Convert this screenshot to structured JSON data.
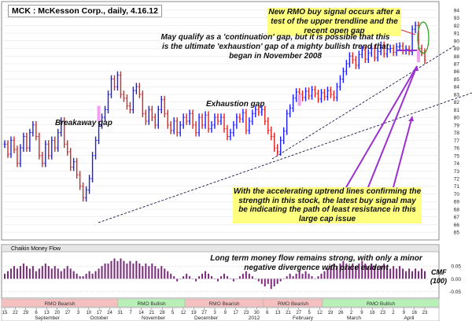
{
  "chart_data": [
    {
      "type": "candlestick",
      "title": "MCK : McKesson Corp., daily, 4.16.12",
      "y_ticks": [
        "65",
        "66",
        "67",
        "68",
        "69",
        "70",
        "71",
        "72",
        "73",
        "74",
        "75",
        "76",
        "77",
        "78",
        "79",
        "80",
        "81",
        "82",
        "83",
        "84",
        "85",
        "86",
        "87",
        "88",
        "89",
        "90",
        "91",
        "92",
        "93",
        "94"
      ],
      "ylim": [
        64.5,
        94.5
      ],
      "series": [
        {
          "color_up": "#1a1aff",
          "color_down": "#dd2222",
          "closes": [
            76.5,
            75.2,
            77,
            75.8,
            74,
            76,
            77.5,
            76,
            78,
            79,
            77.5,
            75,
            74,
            76.5,
            75,
            77,
            76,
            78,
            79.5,
            76.5,
            75.5,
            73.5,
            74.2,
            72.5,
            71,
            69.5,
            70.5,
            72,
            75,
            77,
            79,
            80,
            81,
            83,
            85,
            84,
            85.5,
            83,
            82.5,
            81.5,
            81,
            83.5,
            84,
            83,
            80.5,
            79.5,
            81,
            80,
            79,
            81,
            82.3,
            80.5,
            79,
            78.3,
            79.5,
            78,
            79,
            80,
            79.5,
            80.5,
            79,
            78,
            80,
            79,
            80.3,
            78.5,
            79,
            80,
            79.5,
            80,
            78.5,
            77.5,
            78,
            79,
            80,
            79.8,
            80.6,
            78.3,
            79.5,
            80.5,
            81,
            80.7,
            81,
            79.5,
            78.3,
            77.5,
            76,
            75.5,
            77,
            78.2,
            80.5,
            81.2,
            82.5,
            83.3,
            83,
            82.6,
            83.4,
            82.8,
            83.6,
            83.1,
            82.4,
            83.2,
            82.7,
            83.5,
            83,
            82.6,
            84,
            85,
            86,
            87,
            88,
            87.5,
            86.8,
            88.2,
            88.8,
            87.6,
            88.4,
            89,
            87.8,
            88.6,
            89.4,
            88.3,
            88.9,
            89,
            88.5,
            89.2,
            89.3,
            88.7,
            88.9,
            88.6,
            91.5,
            92,
            89,
            88.5,
            87.5
          ]
        }
      ]
    },
    {
      "type": "bar",
      "title": "Chaikin Money Flow",
      "y_ticks": [
        "0.05",
        "0.00",
        "-0.05"
      ],
      "ylim": [
        -0.07,
        0.1
      ],
      "series": [
        {
          "name": "CMF",
          "color": "#7a2a7a",
          "values": [
            0.02,
            0.03,
            0.04,
            0.05,
            0.04,
            0.05,
            0.06,
            0.05,
            0.04,
            0.05,
            0.03,
            0.04,
            0.05,
            0.06,
            0.05,
            0.04,
            0.05,
            0.04,
            0.03,
            0.04,
            0.05,
            0.04,
            0.03,
            0.02,
            0.01,
            0.01,
            0.02,
            0.03,
            0.02,
            0.03,
            0.04,
            0.05,
            0.06,
            0.06,
            0.07,
            0.08,
            0.07,
            0.08,
            0.07,
            0.06,
            0.07,
            0.06,
            0.07,
            0.06,
            0.05,
            0.06,
            0.05,
            0.06,
            0.05,
            0.04,
            0.05,
            0.04,
            0.03,
            0.02,
            0.01,
            -0.01,
            0.0,
            0.01,
            0.02,
            0.01,
            0.0,
            -0.01,
            0.01,
            0.02,
            0.03,
            0.02,
            0.01,
            0.0,
            -0.01,
            0.01,
            0.02,
            0.01,
            0.0,
            -0.01,
            0.0,
            0.01,
            0.02,
            0.03,
            0.02,
            0.01,
            0.0,
            -0.01,
            -0.02,
            -0.03,
            -0.02,
            -0.04,
            -0.03,
            -0.02,
            -0.01,
            0.0,
            0.01,
            0.02,
            0.01,
            0.02,
            0.03,
            0.02,
            0.03,
            0.02,
            0.01,
            0.0,
            0.01,
            0.02,
            0.03,
            0.04,
            0.05,
            0.06,
            0.05,
            0.06,
            0.07,
            0.06,
            0.05,
            0.06,
            0.05,
            0.06,
            0.07,
            0.06,
            0.05,
            0.06,
            0.05,
            0.04,
            0.05,
            0.06,
            0.05,
            0.04,
            0.05,
            0.04,
            0.05,
            0.04,
            0.03,
            0.04,
            0.03,
            0.04,
            0.03,
            0.04,
            0.03
          ]
        }
      ]
    }
  ],
  "ui": {
    "title": "MCK : McKesson Corp., daily, 4.16.12",
    "cmf_panel_label": "Chaikin Money Flow",
    "cmf_label_1": "CMF",
    "cmf_label_2": "(100)"
  },
  "annotations": {
    "rmo_buy": "New RMO buy signal occurs after a test of the upper trendline and the recent open gap",
    "continuation": "May qualify as a 'continuation' gap, but it is possible that this is the ultimate 'exhaustion' gap of a mighty bullish trend that began in November 2008",
    "breakaway": "Breakaway gap",
    "exhaustion": "Exhaustion gap",
    "uptrend": "With the accelerating uptrend lines confirming the strength in this stock, the latest buy signal may be indicating the path of least resistance in this large cap issue",
    "money_flow": "Long term money flow remains strong, with only a minor negative divergence  with price evident"
  },
  "rmo_bar": [
    {
      "label": "RMO Bearish",
      "type": "bearish"
    },
    {
      "label": "RMO Bullish",
      "type": "bullish"
    },
    {
      "label": "RMO Bearish",
      "type": "bearish"
    },
    {
      "label": "RMO Bearish",
      "type": "bearish"
    },
    {
      "label": "RMO Bullish",
      "type": "bullish"
    }
  ],
  "x_axis": {
    "day_ticks": [
      "15",
      "22",
      "29",
      "6",
      "13",
      "20",
      "27",
      "3",
      "10",
      "17",
      "24",
      "31",
      "7",
      "14",
      "21",
      "28",
      "5",
      "12",
      "19",
      "27",
      "3",
      "9",
      "17",
      "23",
      "30",
      "6",
      "13",
      "21",
      "27",
      "5",
      "12",
      "19",
      "26",
      "2",
      "9",
      "16",
      "23",
      "2",
      "9",
      "16",
      "23"
    ],
    "months": [
      "September",
      "October",
      "November",
      "December",
      "2012",
      "February",
      "March",
      "April"
    ]
  },
  "colors": {
    "up": "#1a1aff",
    "down": "#dd2222",
    "gap": "#f0a0f0",
    "annotation_bg": "#ffff80",
    "arrow": "#9b30d0",
    "bullish_band": "#b8f0b8",
    "bearish_band": "#f4c0c0"
  }
}
